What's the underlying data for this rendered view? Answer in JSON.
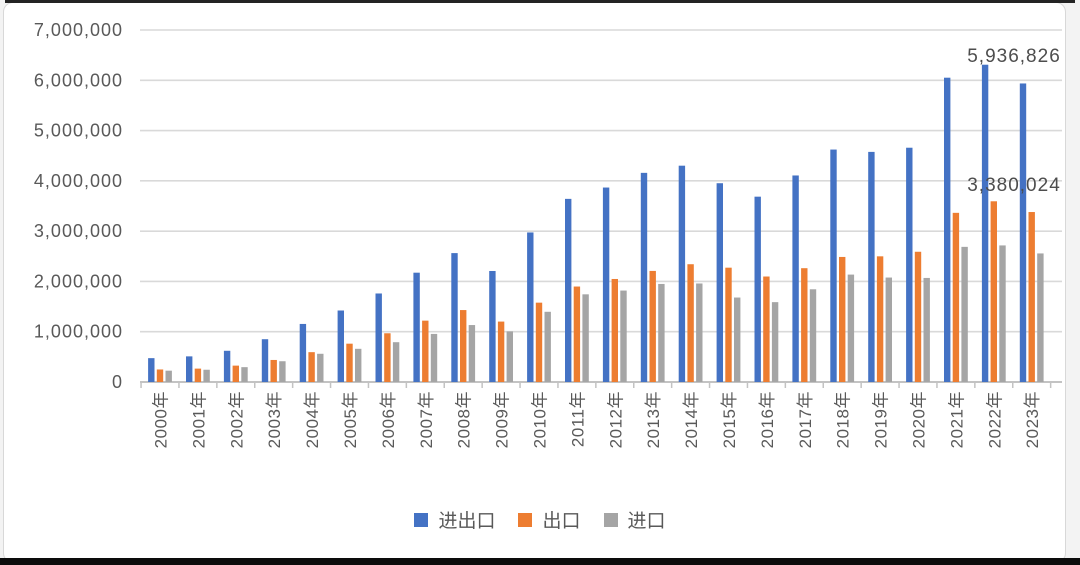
{
  "frame": {
    "background": "#f3f3f3",
    "card_background": "#ffffff",
    "card_border_color": "#d8d8d8",
    "top_strip_color": "#232323",
    "bottom_strip_color": "#0c0c0c"
  },
  "chart_data": {
    "type": "bar",
    "title": "",
    "xlabel": "",
    "ylabel": "",
    "grid": true,
    "legend_position": "bottom",
    "categories": [
      "2000年",
      "2001年",
      "2002年",
      "2003年",
      "2004年",
      "2005年",
      "2006年",
      "2007年",
      "2008年",
      "2009年",
      "2010年",
      "2011年",
      "2012年",
      "2013年",
      "2014年",
      "2015年",
      "2016年",
      "2017年",
      "2018年",
      "2019年",
      "2020年",
      "2021年",
      "2022年",
      "2023年"
    ],
    "series": [
      {
        "name": "进出口",
        "color": "#4472C4",
        "values": [
          474297,
          509651,
          620766,
          850988,
          1154554,
          1421906,
          1760439,
          2173726,
          2563255,
          2207535,
          2974001,
          3641865,
          3867119,
          4158993,
          4301527,
          3953033,
          3685557,
          4107164,
          4622415,
          4576097,
          4659053,
          6051325,
          6309651,
          5936826
        ]
      },
      {
        "name": "出口",
        "color": "#ED7D31",
        "values": [
          249203,
          266098,
          325596,
          438228,
          593326,
          761953,
          968978,
          1220060,
          1430693,
          1201612,
          1577754,
          1898381,
          2048714,
          2209004,
          2342293,
          2273468,
          2097637,
          2263346,
          2486695,
          2499029,
          2589952,
          3363959,
          3593601,
          3380024
        ]
      },
      {
        "name": "进口",
        "color": "#A5A5A5",
        "values": [
          225094,
          243553,
          295170,
          412760,
          561229,
          659953,
          791461,
          956233,
          1132562,
          1005923,
          1396247,
          1743484,
          1818405,
          1949989,
          1959233,
          1679564,
          1587921,
          1843793,
          2135748,
          2077068,
          2069101,
          2687529,
          2716051,
          2556802
        ]
      }
    ],
    "y_axis": {
      "min": 0,
      "max": 7000000,
      "step": 1000000,
      "tick_labels": [
        "0",
        "1,000,000",
        "2,000,000",
        "3,000,000",
        "4,000,000",
        "5,000,000",
        "6,000,000",
        "7,000,000"
      ]
    },
    "annotations": [
      {
        "text": "5,936,826",
        "series": "进出口",
        "category": "2023年",
        "x": 1014,
        "y": 62
      },
      {
        "text": "3,380,024",
        "series": "出口",
        "category": "2023年",
        "x": 1014,
        "y": 191
      }
    ],
    "colors": {
      "gridline": "#d9d9d9",
      "axis_line": "#c3c3c3",
      "tick_mark": "#c3c3c3",
      "axis_text": "#595959",
      "annotation_text": "#4d4d4d"
    }
  }
}
